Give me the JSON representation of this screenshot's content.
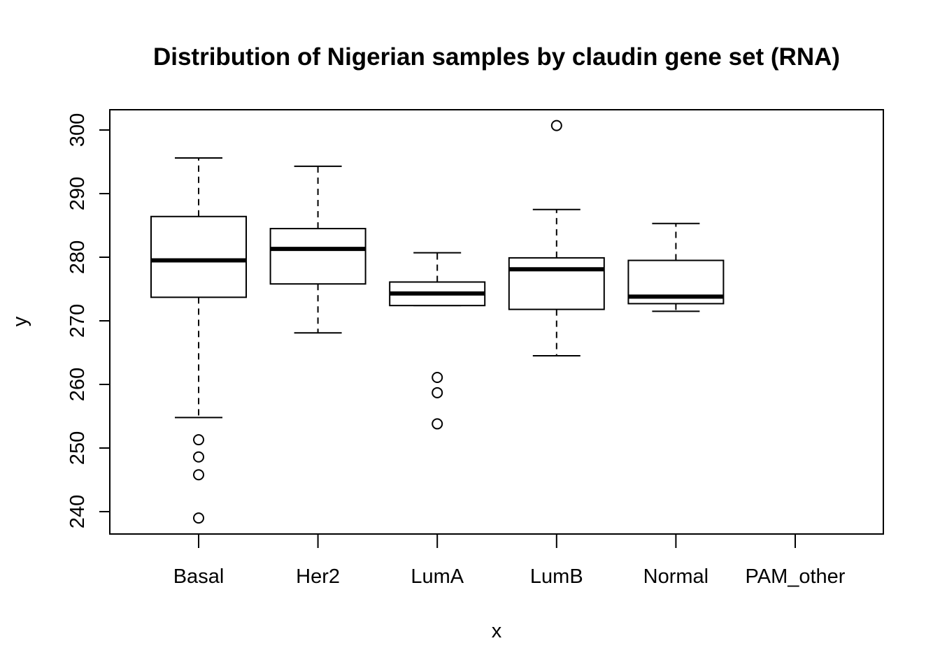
{
  "chart_data": {
    "type": "boxplot",
    "title": "Distribution of Nigerian samples by claudin gene set (RNA)",
    "xlabel": "x",
    "ylabel": "y",
    "categories": [
      "Basal",
      "Her2",
      "LumA",
      "LumB",
      "Normal",
      "PAM_other"
    ],
    "yticks": [
      240,
      250,
      260,
      270,
      280,
      290,
      300
    ],
    "ylim": [
      236.5,
      303
    ],
    "boxes": [
      {
        "category": "Basal",
        "whisker_low": 254.8,
        "q1": 273.7,
        "median": 279.5,
        "q3": 286.4,
        "whisker_high": 295.6,
        "outliers": [
          251.3,
          248.6,
          245.8,
          239.0
        ]
      },
      {
        "category": "Her2",
        "whisker_low": 268.1,
        "q1": 275.8,
        "median": 281.3,
        "q3": 284.5,
        "whisker_high": 294.3,
        "outliers": []
      },
      {
        "category": "LumA",
        "whisker_low": 272.4,
        "q1": 272.4,
        "median": 274.3,
        "q3": 276.1,
        "whisker_high": 280.7,
        "outliers": [
          261.1,
          258.7,
          253.8
        ]
      },
      {
        "category": "LumB",
        "whisker_low": 264.5,
        "q1": 271.8,
        "median": 278.1,
        "q3": 279.9,
        "whisker_high": 287.5,
        "outliers": [
          300.7
        ]
      },
      {
        "category": "Normal",
        "whisker_low": 271.5,
        "q1": 272.7,
        "median": 273.8,
        "q3": 279.5,
        "whisker_high": 285.3,
        "outliers": []
      },
      {
        "category": "PAM_other",
        "whisker_low": null,
        "q1": null,
        "median": null,
        "q3": null,
        "whisker_high": null,
        "outliers": []
      }
    ],
    "grid": false,
    "colors": {
      "box_fill": "#ffffff",
      "stroke": "#000000"
    }
  }
}
